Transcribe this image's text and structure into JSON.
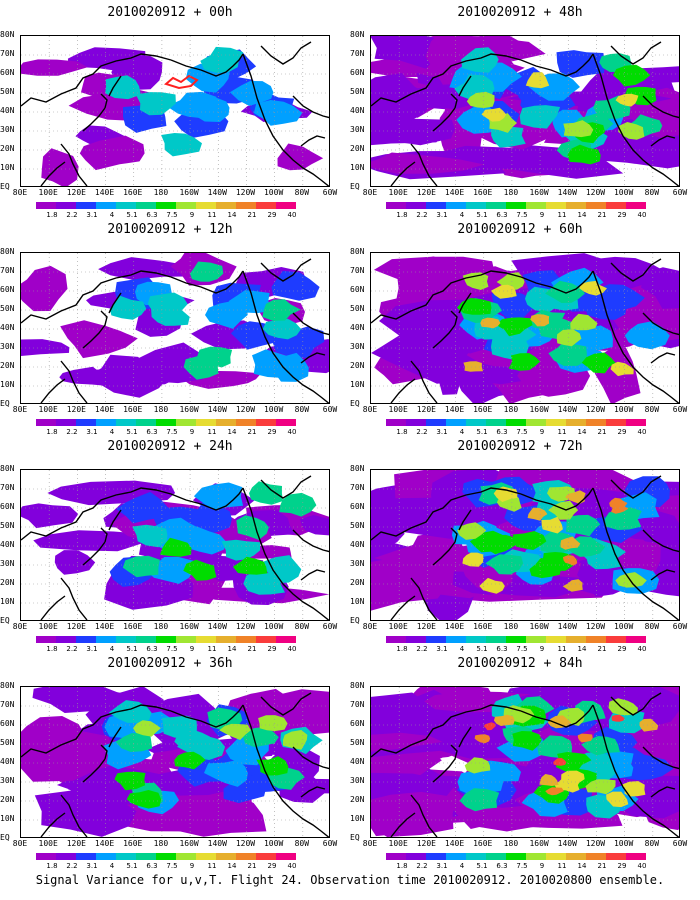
{
  "footer": "Signal Variance for u,v,T. Flight 24. Observation time 2010020912. 2010020800 ensemble.",
  "lat_labels": [
    "80N",
    "70N",
    "60N",
    "50N",
    "40N",
    "30N",
    "20N",
    "10N",
    "EQ"
  ],
  "lon_labels": [
    "80E",
    "100E",
    "120E",
    "140E",
    "160E",
    "180",
    "160W",
    "140W",
    "120W",
    "100W",
    "80W",
    "60W"
  ],
  "colorbar": {
    "labels": [
      "1.8",
      "2.2",
      "3.1",
      "4",
      "5.1",
      "6.3",
      "7.5",
      "9",
      "11",
      "14",
      "21",
      "29",
      "40"
    ],
    "colors": [
      "#a000c8",
      "#8200dc",
      "#1e3cff",
      "#00a0ff",
      "#00c8c8",
      "#00d28c",
      "#00dc00",
      "#a0e632",
      "#e6dc32",
      "#e6af2d",
      "#f08228",
      "#fa3c3c",
      "#f00082"
    ]
  },
  "panels": [
    {
      "title": "2010020912 + 00h",
      "intensity": 0
    },
    {
      "title": "2010020912 + 48h",
      "intensity": 4
    },
    {
      "title": "2010020912 + 12h",
      "intensity": 1
    },
    {
      "title": "2010020912 + 60h",
      "intensity": 5
    },
    {
      "title": "2010020912 + 24h",
      "intensity": 2
    },
    {
      "title": "2010020912 + 72h",
      "intensity": 6
    },
    {
      "title": "2010020912 + 36h",
      "intensity": 3
    },
    {
      "title": "2010020912 + 84h",
      "intensity": 7
    }
  ]
}
